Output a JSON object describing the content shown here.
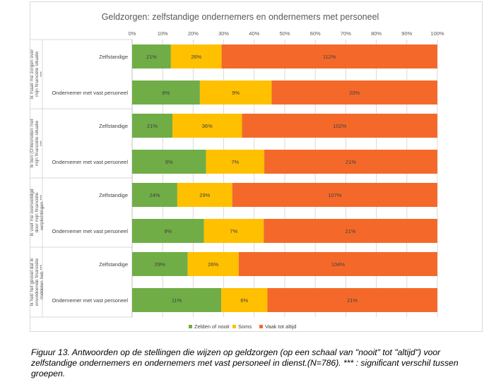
{
  "chart_data": {
    "type": "bar",
    "stacked": "percent",
    "title": "Geldzorgen: zelfstandige ondernemers en ondernemers met personeel",
    "x_ticks": [
      "0%",
      "10%",
      "20%",
      "30%",
      "40%",
      "50%",
      "60%",
      "70%",
      "80%",
      "90%",
      "100%"
    ],
    "xlim": [
      0,
      100
    ],
    "grid": true,
    "legend_position": "bottom",
    "series_meta": [
      {
        "name": "Zelden of nooit",
        "color": "#70ad47"
      },
      {
        "name": "Soms",
        "color": "#ffc000"
      },
      {
        "name": "Vaak tot altijd",
        "color": "#f4692a"
      }
    ],
    "groups": [
      {
        "label": "Ik maak me zorgen over mijn financiële situatie ***",
        "rows": [
          {
            "category": "Zelfstandige",
            "values": [
              12.7,
              16.6,
              70.7
            ],
            "labels": [
              "21%",
              "26%",
              "112%"
            ]
          },
          {
            "category": "Ondernemer met vast personeel",
            "values": [
              22.2,
              23.5,
              54.3
            ],
            "labels": [
              "8%",
              "9%",
              "20%"
            ]
          }
        ]
      },
      {
        "label": "Ik ben (Ontevreden met mijn financiële situatie ***",
        "rows": [
          {
            "category": "Zelfstandige",
            "values": [
              13.2,
              22.8,
              64.0
            ],
            "labels": [
              "21%",
              "36%",
              "102%"
            ]
          },
          {
            "category": "Ondernemer met vast personeel",
            "values": [
              24.2,
              19.1,
              56.7
            ],
            "labels": [
              "9%",
              "7%",
              "21%"
            ]
          }
        ]
      },
      {
        "label": "Ik voel me overweldigd door mijn financiële verplichtingen ***",
        "rows": [
          {
            "category": "Zelfstandige",
            "values": [
              14.8,
              18.0,
              67.2
            ],
            "labels": [
              "24%",
              "29%",
              "107%"
            ]
          },
          {
            "category": "Ondernemer met vast personeel",
            "values": [
              23.5,
              19.6,
              56.9
            ],
            "labels": [
              "9%",
              "7%",
              "21%"
            ]
          }
        ]
      },
      {
        "label": "Ik heb het gevoel dat ik onvoldoende financiële middelen heb ***",
        "rows": [
          {
            "category": "Zelfstandige",
            "values": [
              18.2,
              16.7,
              65.1
            ],
            "labels": [
              "29%",
              "26%",
              "104%"
            ]
          },
          {
            "category": "Ondernemer met vast personeel",
            "values": [
              29.2,
              15.1,
              55.7
            ],
            "labels": [
              "11%",
              "6%",
              "21%"
            ]
          }
        ]
      }
    ]
  },
  "caption": "Figuur 13. Antwoorden op de stellingen die wijzen op geldzorgen (op een schaal van \"nooit\" tot \"altijd\") voor zelfstandige ondernemers en ondernemers met vast personeel in dienst.(N=786). *** : significant verschil tussen groepen."
}
